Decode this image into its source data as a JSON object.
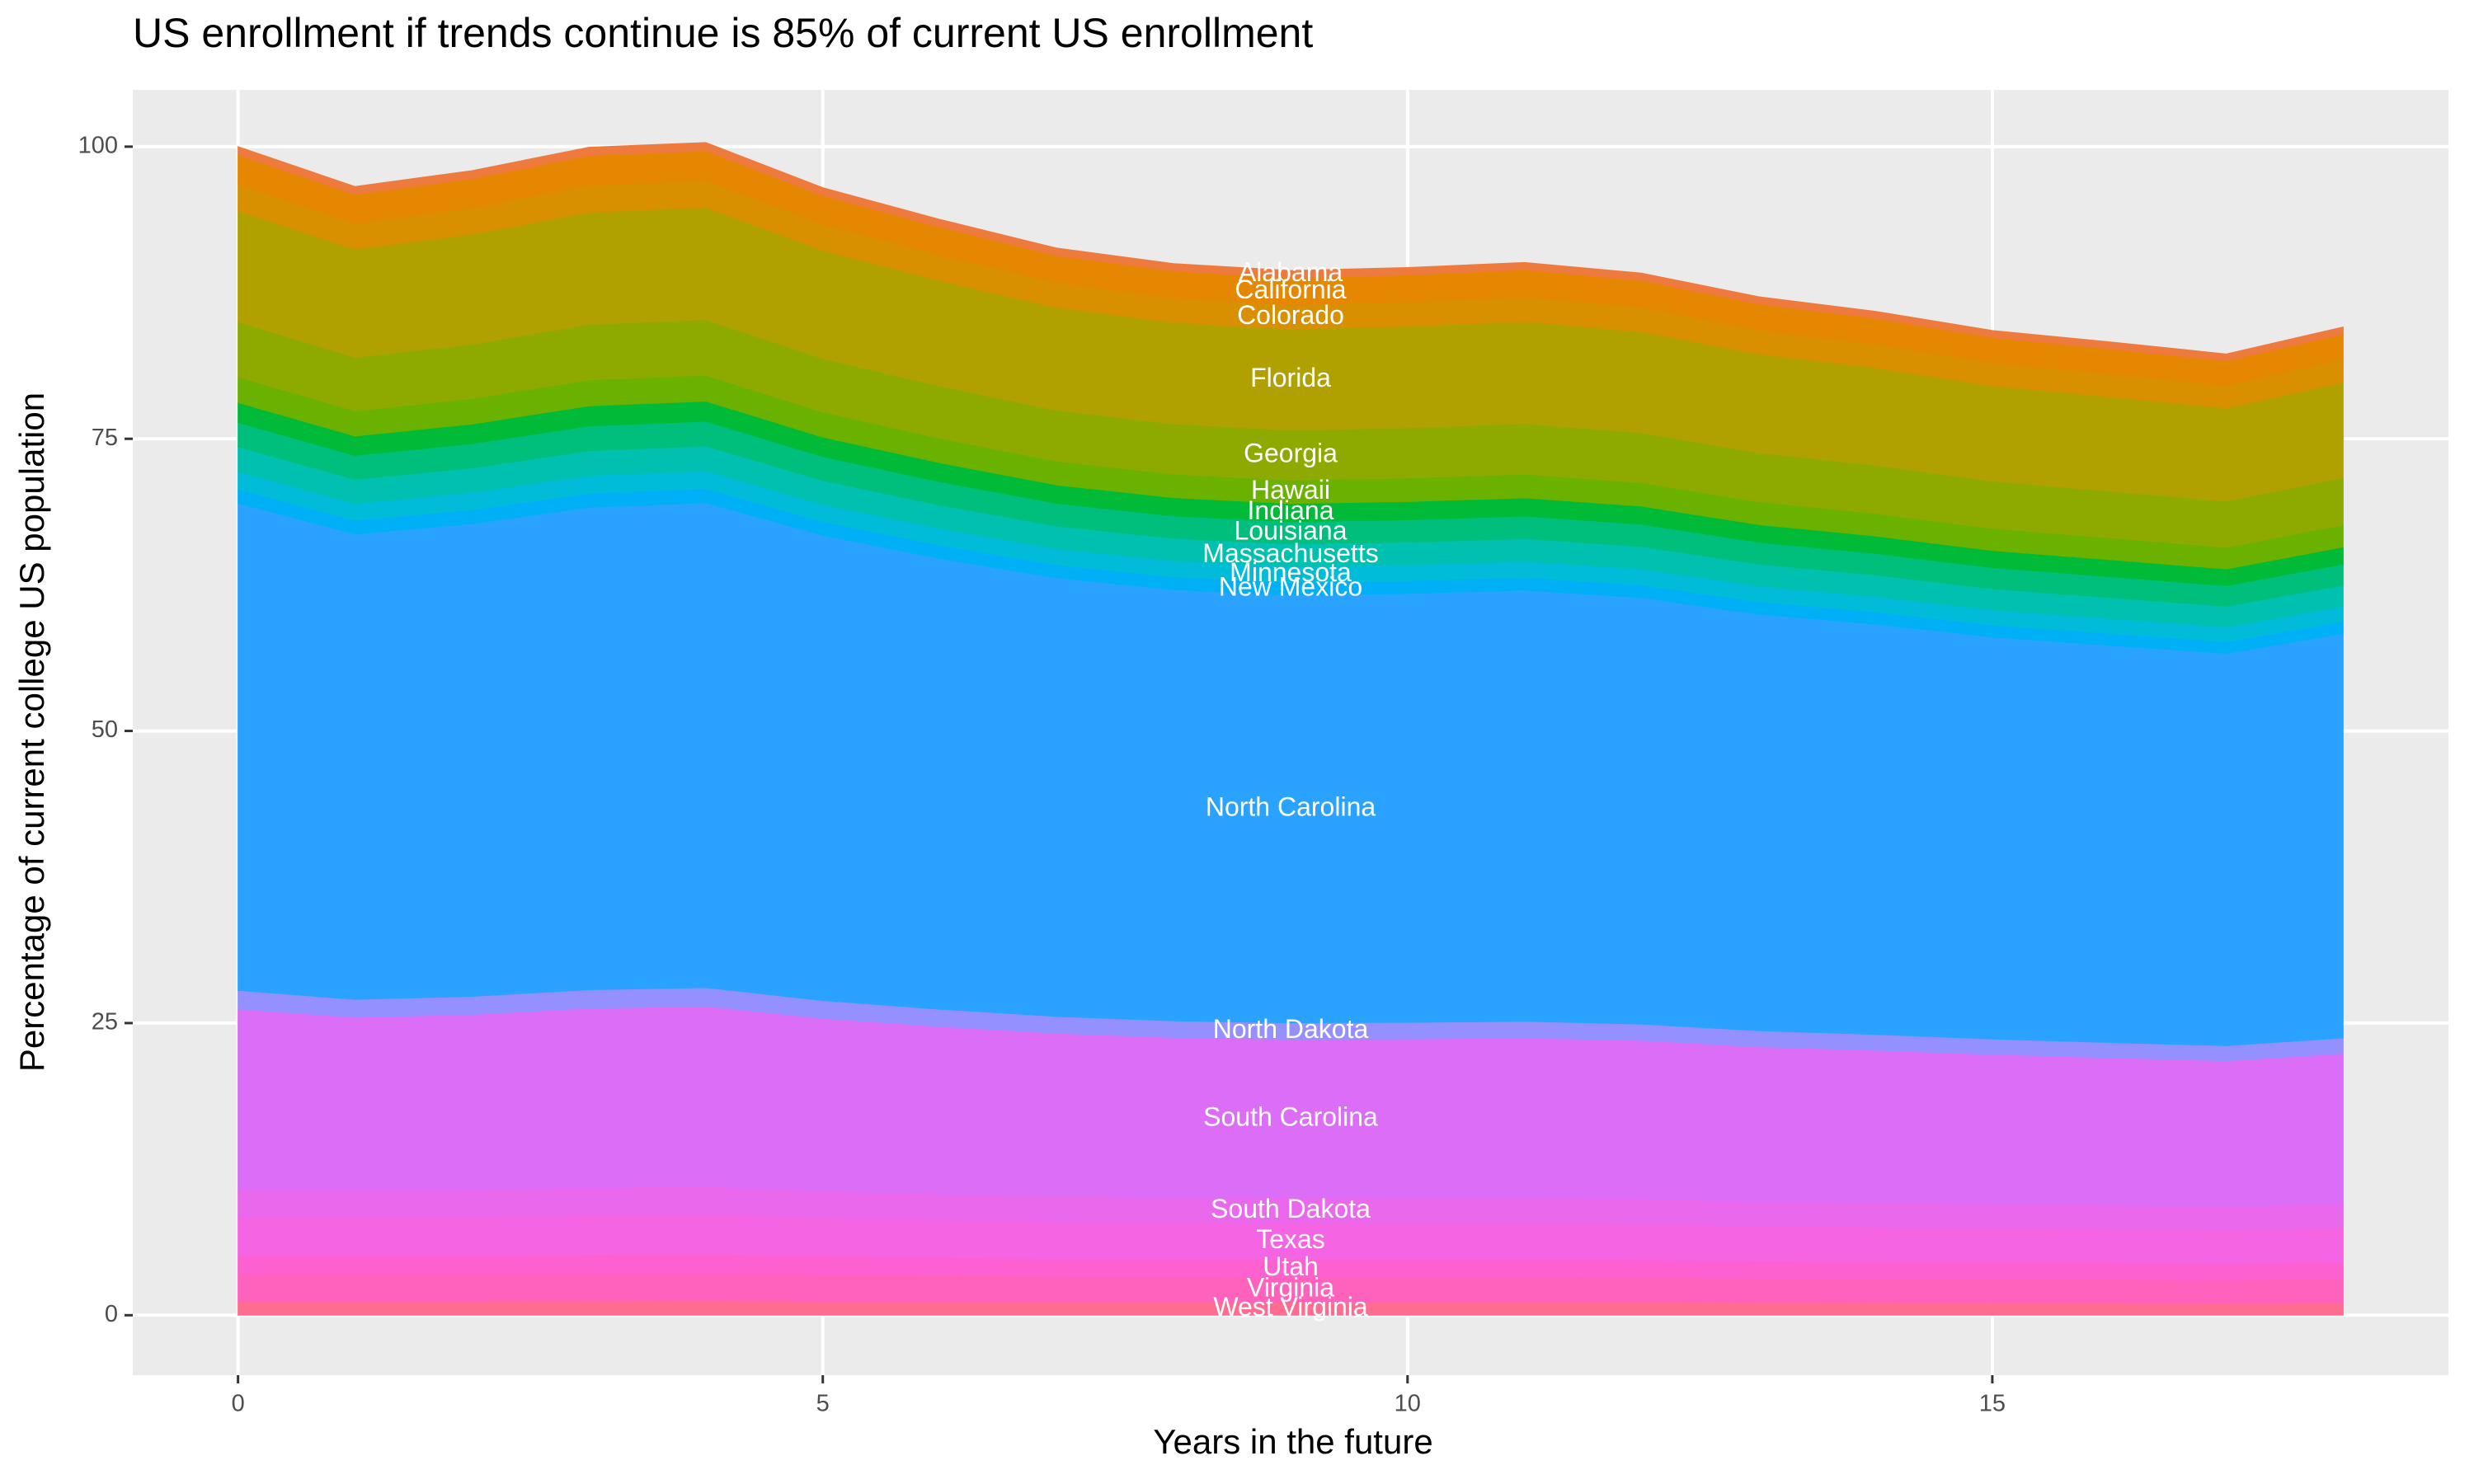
{
  "chart_data": {
    "type": "stacked_area",
    "title": "US enrollment if trends continue is 85% of current US enrollment",
    "x_label": "Years in the future",
    "y_label": "Percentage of current college US population",
    "x": [
      0,
      1,
      2,
      3,
      4,
      5,
      6,
      7,
      8,
      9,
      10,
      11,
      12,
      13,
      14,
      15,
      16,
      17,
      18
    ],
    "xlim": [
      -0.9,
      18.9
    ],
    "xticks": [
      0,
      5,
      10,
      15
    ],
    "ylim": [
      -5.13,
      104.86
    ],
    "yticks": [
      0,
      25,
      50,
      75,
      100
    ],
    "grid": true,
    "label_x": 9,
    "series": [
      {
        "name": "West Virginia",
        "color": "#FF6C91",
        "values": [
          1.2,
          1.2,
          1.2,
          1.22,
          1.24,
          1.19,
          1.16,
          1.14,
          1.13,
          1.12,
          1.12,
          1.12,
          1.12,
          1.09,
          1.08,
          1.07,
          1.06,
          1.04,
          1.07
        ]
      },
      {
        "name": "Virginia",
        "color": "#FF62BC",
        "values": [
          2.3,
          2.3,
          2.3,
          2.35,
          2.37,
          2.28,
          2.23,
          2.19,
          2.16,
          2.15,
          2.15,
          2.15,
          2.14,
          2.09,
          2.07,
          2.05,
          2.02,
          2.0,
          2.05
        ]
      },
      {
        "name": "Utah",
        "color": "#FD61D1",
        "values": [
          1.6,
          1.6,
          1.6,
          1.63,
          1.65,
          1.58,
          1.55,
          1.52,
          1.5,
          1.5,
          1.5,
          1.5,
          1.49,
          1.46,
          1.44,
          1.42,
          1.41,
          1.39,
          1.42
        ]
      },
      {
        "name": "Texas",
        "color": "#F564E3",
        "values": [
          3.3,
          3.3,
          3.3,
          3.37,
          3.4,
          3.27,
          3.2,
          3.14,
          3.1,
          3.09,
          3.09,
          3.09,
          3.07,
          3.0,
          2.97,
          2.94,
          2.9,
          2.87,
          2.94
        ]
      },
      {
        "name": "South Dakota",
        "color": "#EA68EC",
        "values": [
          2.3,
          2.3,
          2.3,
          2.35,
          2.37,
          2.28,
          2.23,
          2.19,
          2.16,
          2.15,
          2.15,
          2.15,
          2.14,
          2.09,
          2.07,
          2.05,
          2.02,
          2.0,
          2.05
        ]
      },
      {
        "name": "South Carolina",
        "color": "#DC6DF7",
        "values": [
          15.5,
          14.8,
          15.04,
          15.35,
          15.42,
          14.8,
          14.34,
          13.95,
          13.72,
          13.61,
          13.64,
          13.72,
          13.56,
          13.25,
          13.05,
          12.79,
          12.63,
          12.48,
          12.87
        ]
      },
      {
        "name": "North Dakota",
        "color": "#9590FF",
        "values": [
          1.6,
          1.53,
          1.55,
          1.58,
          1.59,
          1.53,
          1.48,
          1.44,
          1.42,
          1.4,
          1.41,
          1.42,
          1.4,
          1.37,
          1.35,
          1.32,
          1.3,
          1.29,
          1.33
        ]
      },
      {
        "name": "North Carolina",
        "color": "#29A3FF",
        "values": [
          41.7,
          39.82,
          40.45,
          41.28,
          41.49,
          39.82,
          38.57,
          37.53,
          36.9,
          36.61,
          36.7,
          36.9,
          36.49,
          35.65,
          35.11,
          34.4,
          33.99,
          33.57,
          34.61
        ]
      },
      {
        "name": "New Mexico",
        "color": "#00B0F6",
        "values": [
          1.2,
          1.17,
          1.19,
          1.21,
          1.21,
          1.17,
          1.14,
          1.11,
          1.1,
          1.09,
          1.1,
          1.1,
          1.09,
          1.07,
          1.05,
          1.03,
          1.02,
          1.01,
          1.03
        ]
      },
      {
        "name": "Minnesota",
        "color": "#00BCD8",
        "values": [
          1.5,
          1.46,
          1.49,
          1.52,
          1.52,
          1.46,
          1.43,
          1.39,
          1.37,
          1.37,
          1.37,
          1.38,
          1.37,
          1.34,
          1.32,
          1.29,
          1.28,
          1.26,
          1.29
        ]
      },
      {
        "name": "Massachusetts",
        "color": "#00C0AF",
        "values": [
          2.1,
          2.05,
          2.08,
          2.12,
          2.12,
          2.05,
          2.0,
          1.94,
          1.92,
          1.91,
          1.92,
          1.93,
          1.91,
          1.87,
          1.84,
          1.81,
          1.79,
          1.76,
          1.81
        ]
      },
      {
        "name": "Louisiana",
        "color": "#00BF7D",
        "values": [
          2.1,
          2.05,
          2.08,
          2.12,
          2.12,
          2.05,
          2.0,
          1.94,
          1.92,
          1.91,
          1.92,
          1.93,
          1.91,
          1.87,
          1.84,
          1.81,
          1.79,
          1.76,
          1.81
        ]
      },
      {
        "name": "Indiana",
        "color": "#00BA38",
        "values": [
          1.7,
          1.66,
          1.68,
          1.72,
          1.72,
          1.66,
          1.62,
          1.57,
          1.56,
          1.55,
          1.56,
          1.56,
          1.55,
          1.51,
          1.49,
          1.46,
          1.45,
          1.43,
          1.46
        ]
      },
      {
        "name": "Hawaii",
        "color": "#6BB100",
        "values": [
          2.2,
          2.15,
          2.18,
          2.22,
          2.22,
          2.15,
          2.09,
          2.04,
          2.01,
          2.0,
          2.01,
          2.02,
          2.0,
          1.96,
          1.93,
          1.89,
          1.87,
          1.85,
          1.89
        ]
      },
      {
        "name": "Georgia",
        "color": "#8EAA00",
        "values": [
          4.7,
          4.58,
          4.65,
          4.75,
          4.75,
          4.58,
          4.47,
          4.35,
          4.3,
          4.28,
          4.3,
          4.32,
          4.28,
          4.18,
          4.13,
          4.04,
          4.0,
          3.95,
          4.04
        ]
      },
      {
        "name": "Florida",
        "color": "#B0A100",
        "values": [
          9.5,
          9.26,
          9.41,
          9.6,
          9.6,
          9.26,
          9.03,
          8.79,
          8.69,
          8.65,
          8.69,
          8.74,
          8.65,
          8.46,
          8.34,
          8.17,
          8.08,
          7.98,
          8.17
        ]
      },
      {
        "name": "Colorado",
        "color": "#D89000",
        "values": [
          2.3,
          2.24,
          2.28,
          2.32,
          2.32,
          2.24,
          2.19,
          2.13,
          2.1,
          2.09,
          2.1,
          2.12,
          2.09,
          2.05,
          2.02,
          1.98,
          1.96,
          1.93,
          1.98
        ]
      },
      {
        "name": "California",
        "color": "#E58700",
        "values": [
          2.5,
          2.44,
          2.48,
          2.53,
          2.53,
          2.44,
          2.38,
          2.31,
          2.29,
          2.28,
          2.29,
          2.3,
          2.28,
          2.23,
          2.2,
          2.15,
          2.13,
          2.1,
          2.15
        ]
      },
      {
        "name": "Alabama",
        "color": "#EE7A3E",
        "values": [
          0.7,
          0.68,
          0.69,
          0.71,
          0.71,
          0.68,
          0.67,
          0.65,
          0.64,
          0.64,
          0.64,
          0.64,
          0.64,
          0.62,
          0.61,
          0.6,
          0.6,
          0.59,
          0.6
        ]
      }
    ]
  }
}
